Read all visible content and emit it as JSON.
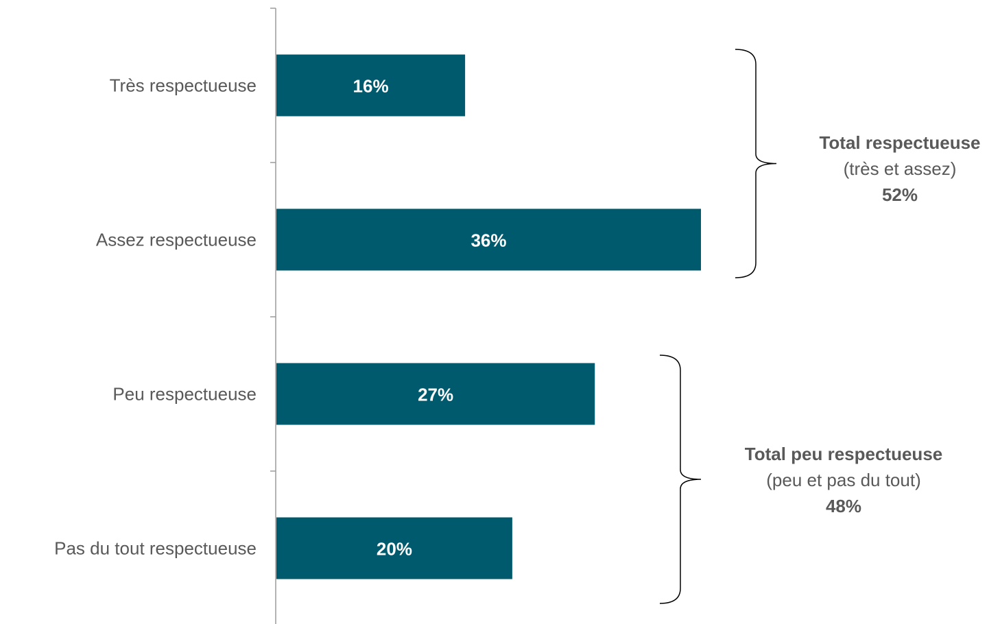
{
  "chart_data": {
    "type": "bar",
    "orientation": "horizontal",
    "categories": [
      "Très respectueuse",
      "Assez respectueuse",
      "Peu respectueuse",
      "Pas du tout respectueuse"
    ],
    "values": [
      16,
      36,
      27,
      20
    ],
    "value_labels": [
      "16%",
      "36%",
      "27%",
      "20%"
    ],
    "xlim": [
      0,
      40
    ],
    "bar_color": "#005a6e",
    "grid": false,
    "legend": "none",
    "groups": [
      {
        "title": "Total respectueuse",
        "subtitle": "(très et assez)",
        "total": "52%",
        "categories": [
          0,
          1
        ]
      },
      {
        "title": "Total peu respectueuse",
        "subtitle": "(peu et pas du tout)",
        "total": "48%",
        "categories": [
          2,
          3
        ]
      }
    ]
  }
}
